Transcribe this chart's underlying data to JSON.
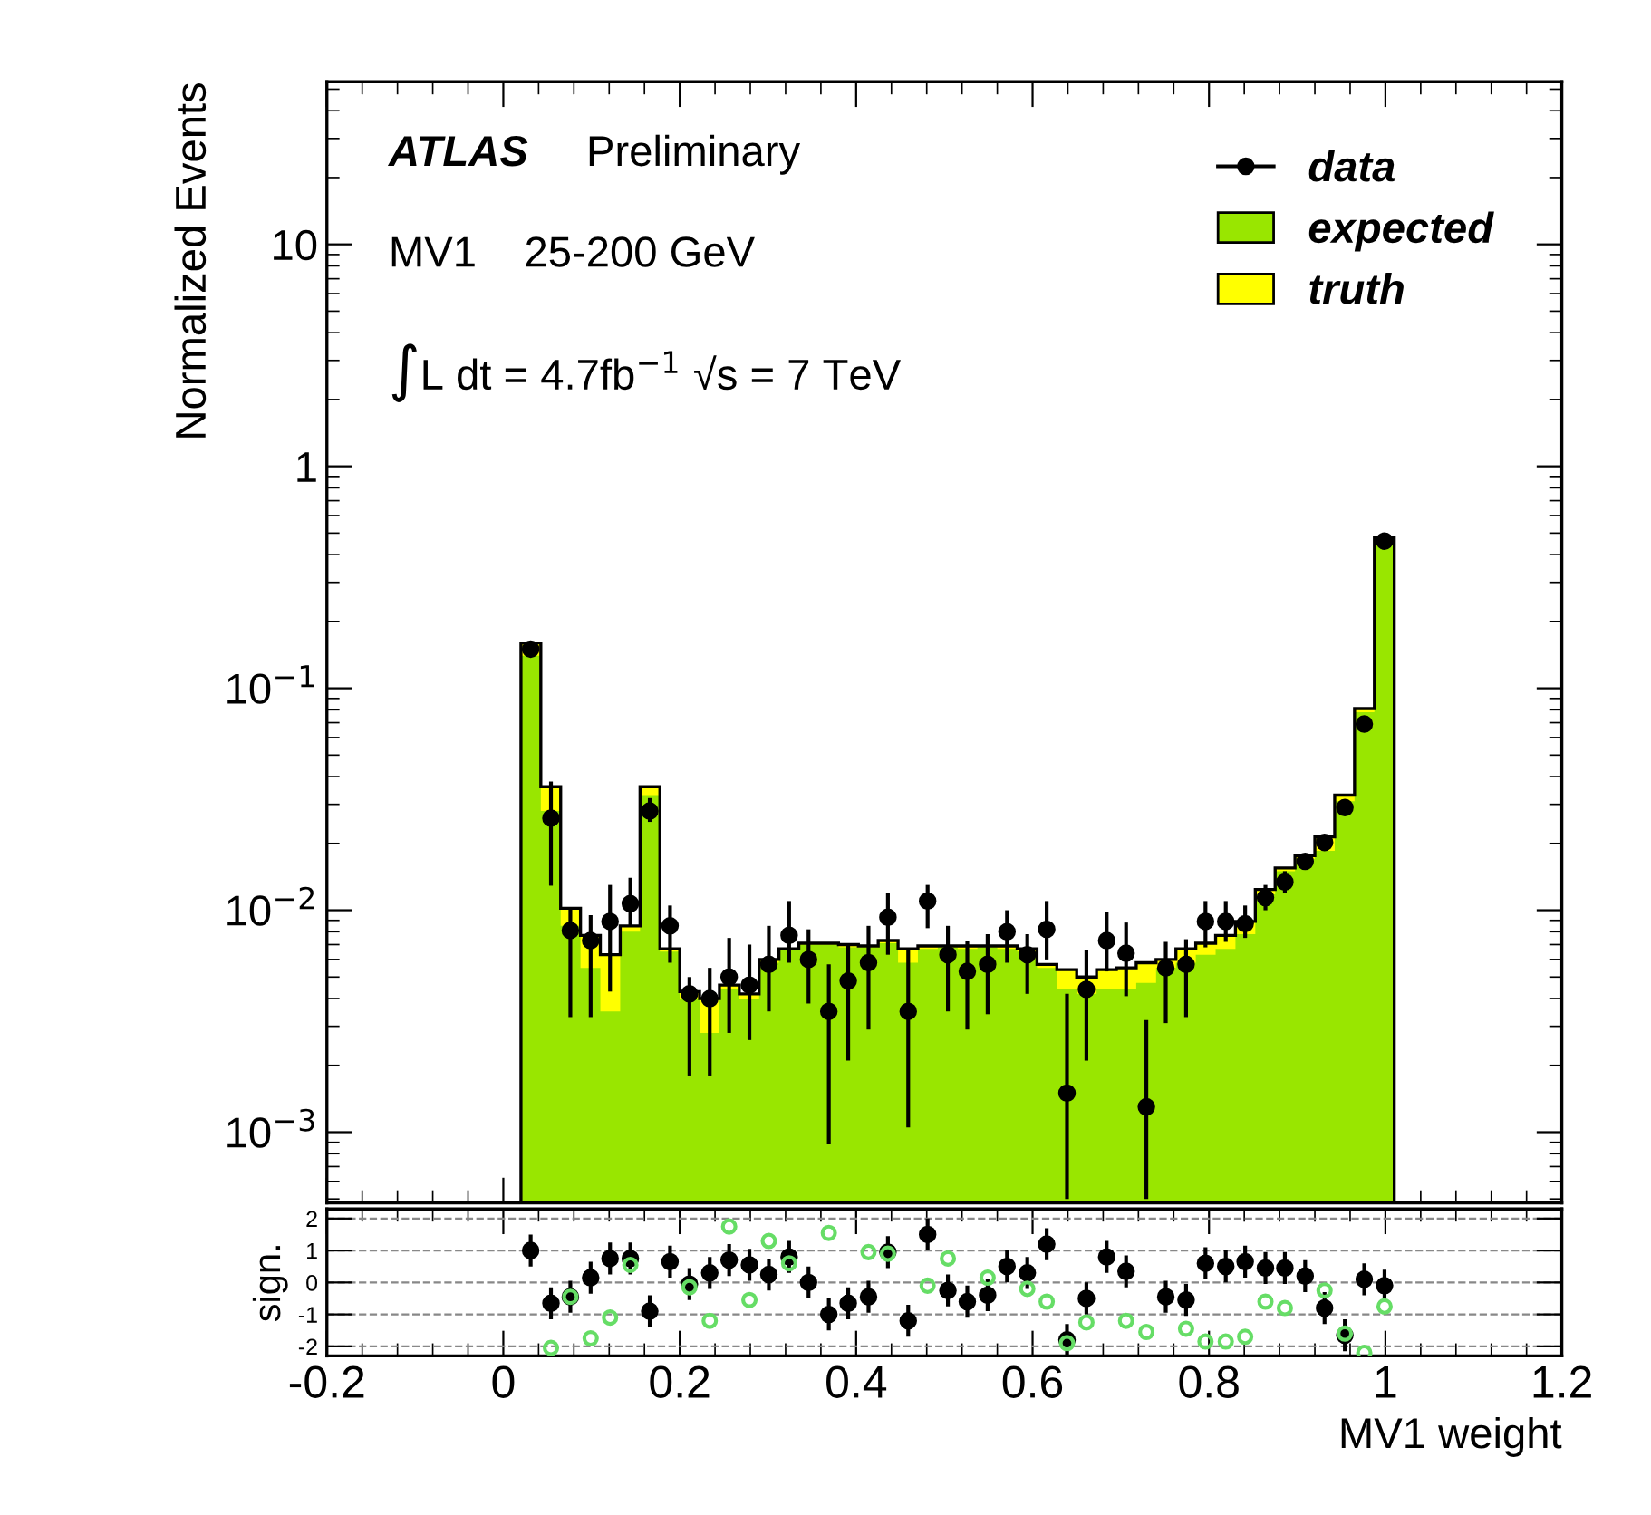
{
  "chart_data": [
    {
      "type": "histogram",
      "ylabel": "Normalized Events",
      "annotations": [
        "ATLAS",
        "Preliminary",
        "MV1    25-200 GeV",
        "∫L dt = 4.7fb$^{−1}$ √s = 7 TeV"
      ],
      "bins": [
        0.02,
        0.0425,
        0.065,
        0.0875,
        0.11,
        0.1325,
        0.155,
        0.1775,
        0.2,
        0.2225,
        0.245,
        0.2675,
        0.29,
        0.3125,
        0.335,
        0.3575,
        0.38,
        0.4025,
        0.425,
        0.4475,
        0.47,
        0.4925,
        0.515,
        0.5375,
        0.56,
        0.5825,
        0.605,
        0.6275,
        0.65,
        0.6725,
        0.695,
        0.7175,
        0.74,
        0.7625,
        0.785,
        0.8075,
        0.83,
        0.8525,
        0.875,
        0.8975,
        0.92,
        0.9425,
        0.965,
        0.9875,
        1.01
      ],
      "series": [
        {
          "name": "truth",
          "type": "histogram",
          "color": "#ffff00",
          "values": [
            0.16,
            0.036,
            0.0102,
            0.0077,
            0.0063,
            0.0085,
            0.036,
            0.0067,
            0.0043,
            0.004,
            0.0046,
            0.0042,
            0.006,
            0.0067,
            0.0071,
            0.0071,
            0.007,
            0.0069,
            0.0073,
            0.0067,
            0.0069,
            0.0069,
            0.0069,
            0.0069,
            0.0069,
            0.0067,
            0.0057,
            0.0054,
            0.005,
            0.0054,
            0.0055,
            0.0058,
            0.006,
            0.0067,
            0.0071,
            0.0077,
            0.0089,
            0.0124,
            0.0155,
            0.0176,
            0.0214,
            0.033,
            0.081,
            0.48
          ]
        },
        {
          "name": "expected",
          "type": "histogram",
          "color": "#99e600",
          "values": [
            0.14,
            0.028,
            0.0085,
            0.0055,
            0.0035,
            0.008,
            0.033,
            0.0065,
            0.004,
            0.0028,
            0.0044,
            0.004,
            0.0058,
            0.0066,
            0.007,
            0.007,
            0.0068,
            0.0068,
            0.0071,
            0.0058,
            0.0067,
            0.0068,
            0.0067,
            0.0068,
            0.0067,
            0.0065,
            0.0055,
            0.0044,
            0.0042,
            0.0044,
            0.0044,
            0.0047,
            0.0055,
            0.0058,
            0.0063,
            0.0067,
            0.0078,
            0.0118,
            0.015,
            0.017,
            0.0185,
            0.031,
            0.078,
            0.47
          ]
        },
        {
          "name": "data",
          "type": "scatter",
          "color": "#000000",
          "x": [
            0.031,
            0.054,
            0.076,
            0.099,
            0.121,
            0.144,
            0.166,
            0.189,
            0.211,
            0.234,
            0.256,
            0.279,
            0.301,
            0.324,
            0.346,
            0.369,
            0.391,
            0.414,
            0.436,
            0.459,
            0.481,
            0.504,
            0.526,
            0.549,
            0.571,
            0.594,
            0.616,
            0.639,
            0.661,
            0.684,
            0.706,
            0.729,
            0.751,
            0.774,
            0.796,
            0.819,
            0.841,
            0.864,
            0.886,
            0.909,
            0.931,
            0.954,
            0.976,
            0.999
          ],
          "values": [
            0.15,
            0.026,
            0.0081,
            0.0073,
            0.0089,
            0.0107,
            0.028,
            0.0085,
            0.0042,
            0.004,
            0.005,
            0.0046,
            0.0057,
            0.0077,
            0.006,
            0.0035,
            0.0048,
            0.0058,
            0.0093,
            0.0035,
            0.011,
            0.0063,
            0.0053,
            0.0057,
            0.008,
            0.0063,
            0.0082,
            0.0015,
            0.0044,
            0.0073,
            0.0064,
            0.0013,
            0.0055,
            0.0057,
            0.0089,
            0.0089,
            0.0087,
            0.0114,
            0.0134,
            0.0166,
            0.0202,
            0.029,
            0.069,
            0.46
          ],
          "errors": [
            [
              0.14,
              0.16
            ],
            [
              0.0129,
              0.038
            ],
            [
              0.0033,
              0.0102
            ],
            [
              0.0033,
              0.0095
            ],
            [
              0.0043,
              0.013
            ],
            [
              0.0085,
              0.014
            ],
            [
              0.025,
              0.032
            ],
            [
              0.0058,
              0.0105
            ],
            [
              0.0018,
              0.005
            ],
            [
              0.0018,
              0.0055
            ],
            [
              0.0028,
              0.0075
            ],
            [
              0.0026,
              0.007
            ],
            [
              0.0035,
              0.0085
            ],
            [
              0.0058,
              0.011
            ],
            [
              0.0038,
              0.0082
            ],
            [
              0.00088,
              0.0057
            ],
            [
              0.0021,
              0.007
            ],
            [
              0.0029,
              0.0085
            ],
            [
              0.0063,
              0.012
            ],
            [
              0.00105,
              0.0067
            ],
            [
              0.0083,
              0.013
            ],
            [
              0.0035,
              0.0085
            ],
            [
              0.0029,
              0.0073
            ],
            [
              0.0034,
              0.0078
            ],
            [
              0.0058,
              0.01
            ],
            [
              0.0042,
              0.0078
            ],
            [
              0.006,
              0.011
            ],
            [
              0.0005,
              0.0042
            ],
            [
              0.0021,
              0.0066
            ],
            [
              0.0053,
              0.0098
            ],
            [
              0.0041,
              0.0088
            ],
            [
              0.0005,
              0.0032
            ],
            [
              0.0031,
              0.0072
            ],
            [
              0.0033,
              0.0074
            ],
            [
              0.0068,
              0.011
            ],
            [
              0.0072,
              0.011
            ],
            [
              0.0075,
              0.0105
            ],
            [
              0.01,
              0.013
            ],
            [
              0.012,
              0.015
            ],
            [
              0.0155,
              0.0178
            ],
            [
              0.019,
              0.0215
            ],
            [
              0.028,
              0.03
            ],
            [
              0.066,
              0.072
            ],
            [
              0.45,
              0.47
            ]
          ]
        }
      ],
      "xlim": [
        -0.2,
        1.2
      ],
      "ylim": [
        0.00048,
        54
      ],
      "log": true,
      "yticks": [
        {
          "value": 0.001,
          "label": "10$^{−3}$"
        },
        {
          "value": 0.01,
          "label": "10$^{−2}$"
        },
        {
          "value": 0.1,
          "label": "10$^{−1}$"
        },
        1,
        10
      ],
      "tick_labels": "y",
      "marker": "circle",
      "legend": "top right",
      "grid": false
    },
    {
      "type": "scatter",
      "xlabel": "MV1 weight",
      "ylabel": "sign.",
      "x": [
        0.031,
        0.054,
        0.076,
        0.099,
        0.121,
        0.144,
        0.166,
        0.189,
        0.211,
        0.234,
        0.256,
        0.279,
        0.301,
        0.324,
        0.346,
        0.369,
        0.391,
        0.414,
        0.436,
        0.459,
        0.481,
        0.504,
        0.526,
        0.549,
        0.571,
        0.594,
        0.616,
        0.639,
        0.661,
        0.684,
        0.706,
        0.729,
        0.751,
        0.774,
        0.796,
        0.819,
        0.841,
        0.864,
        0.886,
        0.909,
        0.931,
        0.954,
        0.976,
        0.999
      ],
      "series": [
        {
          "color": "#66dd66",
          "values": [
            null,
            -2.05,
            -0.45,
            -1.75,
            -1.1,
            0.55,
            null,
            null,
            -0.15,
            -1.2,
            1.75,
            -0.55,
            1.3,
            0.6,
            null,
            1.55,
            null,
            0.95,
            0.9,
            null,
            -0.1,
            0.75,
            null,
            0.15,
            null,
            -0.2,
            -0.6,
            -1.9,
            -1.25,
            null,
            -1.2,
            -1.55,
            null,
            -1.45,
            -1.85,
            -1.85,
            -1.7,
            -0.6,
            -0.8,
            null,
            -0.25,
            -1.6,
            -2.2,
            -0.75
          ]
        },
        {
          "color": "#000000",
          "values": [
            1.0,
            -0.65,
            -0.45,
            0.15,
            0.75,
            0.75,
            -0.9,
            0.65,
            -0.05,
            0.3,
            0.7,
            0.55,
            0.25,
            0.8,
            0.0,
            -1.0,
            -0.65,
            -0.45,
            0.95,
            -1.2,
            1.5,
            -0.25,
            -0.6,
            -0.4,
            0.5,
            0.3,
            1.2,
            -1.8,
            -0.5,
            0.8,
            0.35,
            null,
            -0.45,
            -0.55,
            0.6,
            0.5,
            0.65,
            0.45,
            0.45,
            0.2,
            -0.8,
            -1.65,
            0.1,
            -0.1
          ],
          "errors": [
            0.5,
            0.5,
            0.5,
            0.5,
            0.5,
            0.5,
            0.5,
            0.5,
            0.5,
            0.5,
            0.5,
            0.5,
            0.5,
            0.5,
            0.5,
            0.5,
            0.5,
            0.5,
            0.5,
            0.5,
            0.5,
            0.5,
            0.5,
            0.5,
            0.5,
            0.5,
            0.5,
            0.5,
            0.5,
            0.5,
            0.5,
            null,
            0.5,
            0.5,
            0.5,
            0.5,
            0.5,
            0.5,
            0.5,
            0.5,
            0.5,
            0.5,
            0.5,
            0.5
          ]
        }
      ],
      "xlim": [
        -0.2,
        1.2
      ],
      "xticks": [
        -0.2,
        0,
        0.2,
        0.4,
        0.6,
        0.8,
        1,
        1.2
      ],
      "ylim": [
        -2.3,
        2.3
      ],
      "yticks": [
        -2,
        -1,
        0,
        1,
        2
      ],
      "grid": "y",
      "marker": "circle",
      "line_style": "dashed"
    }
  ]
}
